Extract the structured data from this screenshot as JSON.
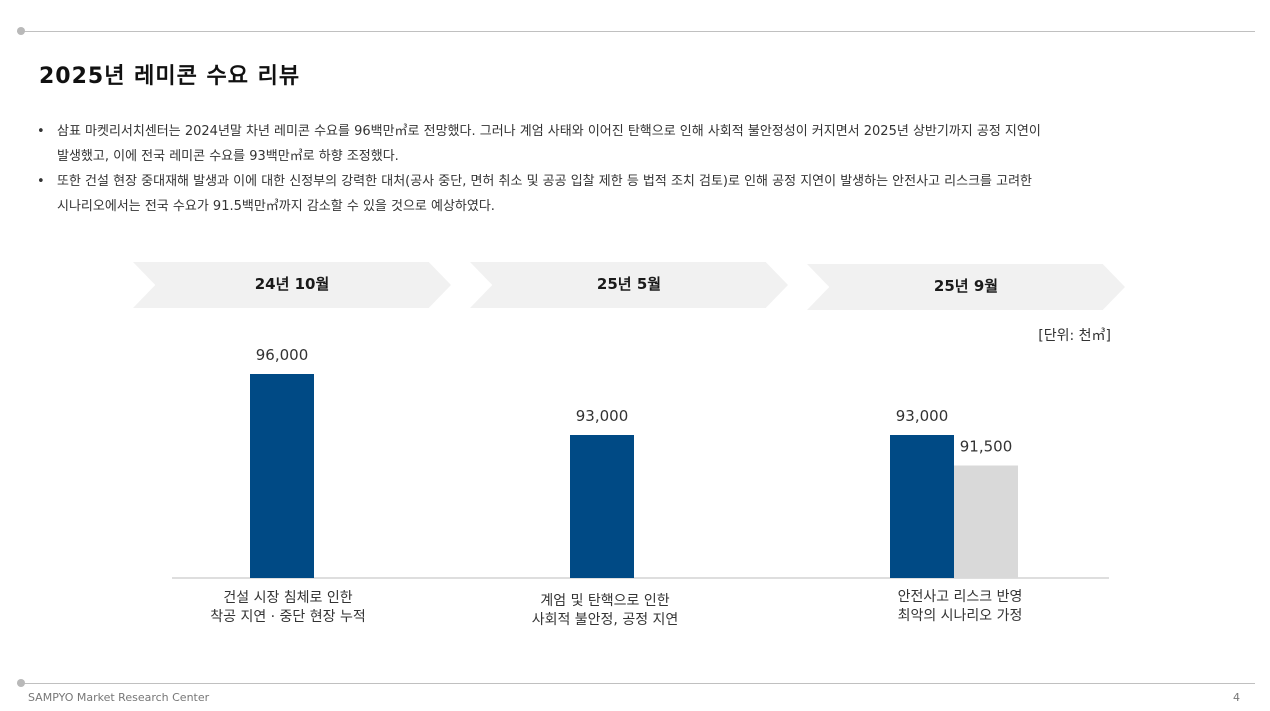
{
  "page": {
    "title": "2025년 레미콘 수요 리뷰",
    "bullets": [
      {
        "mark": "•",
        "lines": [
          "삼표 마켓리서치센터는 2024년말 차년 레미콘 수요를 96백만㎥로 전망했다. 그러나 계엄 사태와 이어진 탄핵으로 인해 사회적 불안정성이 커지면서 2025년 상반기까지 공정 지연이",
          "발생했고, 이에 전국 레미콘 수요를 93백만㎥로 하향 조정했다."
        ]
      },
      {
        "mark": "•",
        "lines": [
          "또한 건설 현장 중대재해 발생과 이에 대한 신정부의 강력한 대처(공사 중단, 면허 취소 및 공공 입찰 제한 등 법적 조치 검토)로 인해 공정 지연이 발생하는 안전사고 리스크를 고려한",
          "시나리오에서는 전국 수요가 91.5백만㎥까지 감소할 수 있을 것으로 예상하였다."
        ]
      }
    ],
    "footer": "SAMPYO Market Research Center",
    "page_number": "4"
  },
  "chart_data": {
    "type": "bar",
    "unit_label": "[단위: 천㎥]",
    "periods": [
      "24년 10월",
      "25년 5월",
      "25년 9월"
    ],
    "categories": [
      [
        "건설 시장 침체로 인한",
        "착공 지연 · 중단 현장 누적"
      ],
      [
        "계엄 및 탄핵으로 인한",
        "사회적 불안정, 공정 지연"
      ],
      [
        "안전사고 리스크 반영",
        "최악의 시나리오 가정"
      ]
    ],
    "bars": [
      {
        "group": 0,
        "value": 96000,
        "label": "96,000",
        "color": "#004a85"
      },
      {
        "group": 1,
        "value": 93000,
        "label": "93,000",
        "color": "#004a85"
      },
      {
        "group": 2,
        "value": 93000,
        "label": "93,000",
        "color": "#004a85"
      },
      {
        "group": 2,
        "value": 91500,
        "label": "91,500",
        "color": "#d9d9d9"
      }
    ],
    "colors": {
      "primary": "#004a85",
      "scenario": "#d9d9d9",
      "axis": "#bdbdbd",
      "chevron": "#f1f1f1"
    }
  }
}
